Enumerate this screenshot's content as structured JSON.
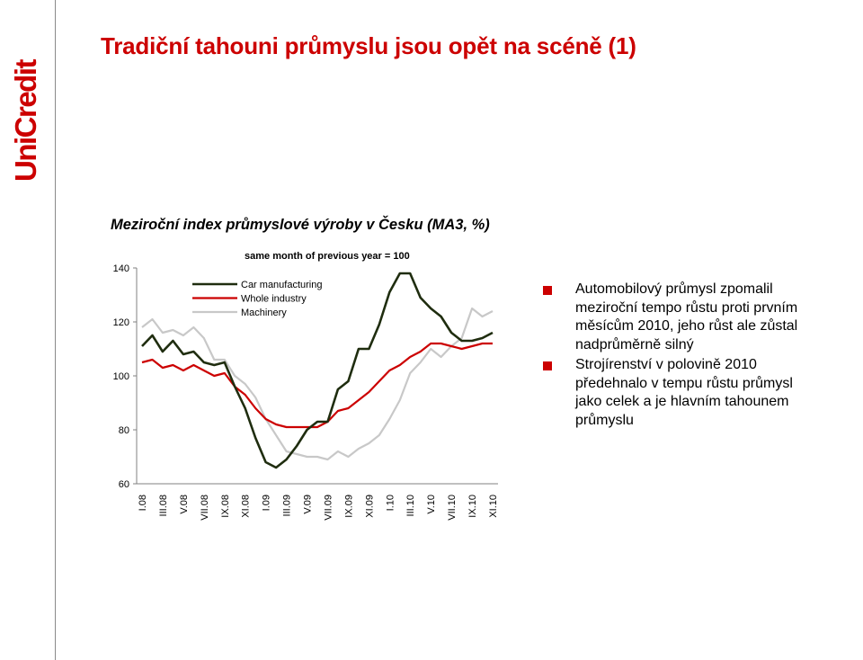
{
  "brand": {
    "logo_text": "UniCredit",
    "logo_color": "#cc0000"
  },
  "slide": {
    "title": "Tradiční tahouni průmyslu jsou opět na scéně (1)"
  },
  "chart_data": {
    "type": "line",
    "title": "Meziroční index průmyslové výroby v Česku (MA3, %)",
    "subtitle": "same month of previous year = 100",
    "xlabel": "",
    "ylabel": "",
    "ylim": [
      60,
      140
    ],
    "y_ticks": [
      "60",
      "80",
      "100",
      "120",
      "140"
    ],
    "grid": false,
    "legend_position": "top-left",
    "x_tick_labels": [
      "I.08",
      "III.08",
      "V.08",
      "VII.08",
      "IX.08",
      "XI.08",
      "I.09",
      "III.09",
      "V.09",
      "VII.09",
      "IX.09",
      "XI.09",
      "I.10",
      "III.10",
      "V.10",
      "VII.10",
      "IX.10",
      "XI.10"
    ],
    "x": [
      "I.08",
      "II.08",
      "III.08",
      "IV.08",
      "V.08",
      "VI.08",
      "VII.08",
      "VIII.08",
      "IX.08",
      "X.08",
      "XI.08",
      "XII.08",
      "I.09",
      "II.09",
      "III.09",
      "IV.09",
      "V.09",
      "VI.09",
      "VII.09",
      "VIII.09",
      "IX.09",
      "X.09",
      "XI.09",
      "XII.09",
      "I.10",
      "II.10",
      "III.10",
      "IV.10",
      "V.10",
      "VI.10",
      "VII.10",
      "VIII.10",
      "IX.10",
      "X.10",
      "XI.10"
    ],
    "series": [
      {
        "name": "Car manufacturing",
        "color": "#1f2d0f",
        "values": [
          111,
          115,
          109,
          113,
          108,
          109,
          105,
          104,
          105,
          96,
          88,
          77,
          68,
          66,
          69,
          74,
          80,
          83,
          83,
          95,
          98,
          110,
          110,
          119,
          131,
          138,
          138,
          129,
          125,
          122,
          116,
          113,
          113,
          114,
          116
        ]
      },
      {
        "name": "Whole industry",
        "color": "#cc0000",
        "values": [
          105,
          106,
          103,
          104,
          102,
          104,
          102,
          100,
          101,
          96,
          93,
          88,
          84,
          82,
          81,
          81,
          81,
          81,
          83,
          87,
          88,
          91,
          94,
          98,
          102,
          104,
          107,
          109,
          112,
          112,
          111,
          110,
          111,
          112,
          112
        ]
      },
      {
        "name": "Machinery",
        "color": "#c8c8c8",
        "values": [
          118,
          121,
          116,
          117,
          115,
          118,
          114,
          106,
          106,
          100,
          97,
          92,
          84,
          78,
          72,
          71,
          70,
          70,
          69,
          72,
          70,
          73,
          75,
          78,
          84,
          91,
          101,
          105,
          110,
          107,
          111,
          114,
          125,
          122,
          124
        ]
      }
    ]
  },
  "bullets": [
    "Automobilový průmysl zpomalil meziroční tempo růstu proti prvním měsícům 2010, jeho růst ale zůstal nadprůměrně silný",
    "Strojírenství v polovině 2010 předehnalo v tempu růstu průmysl jako celek a je hlavním tahounem průmyslu"
  ]
}
